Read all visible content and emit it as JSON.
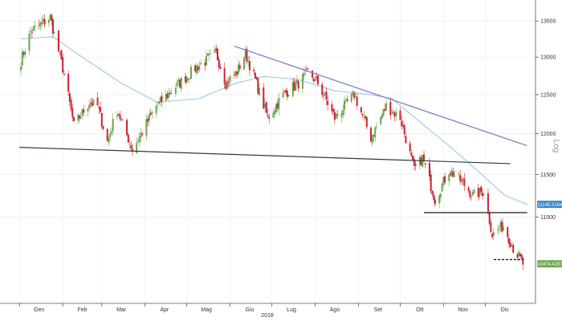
{
  "chart_data": {
    "type": "candlestick",
    "title": "",
    "xlabel": "2018",
    "ylabel": "Log",
    "y_scale": "log",
    "ylim": [
      10050,
      13800
    ],
    "y_ticks": [
      "13500",
      "13000",
      "12500",
      "12000",
      "11500",
      "11000"
    ],
    "months": [
      "Gen",
      "Feb",
      "Mar",
      "Apr",
      "Mag",
      "Giu",
      "Lug",
      "Ago",
      "Set",
      "Ott",
      "Nov",
      "Dic"
    ],
    "up_color": "#6aa84f",
    "down_color": "#cc2233",
    "moving_average_color": "#8fc3ea",
    "price_badges": [
      {
        "name": "moving-average",
        "value": "11145.5164",
        "color": "#3d85c6"
      },
      {
        "name": "last-price",
        "value": "10474.4297",
        "color": "#6aa84f"
      }
    ],
    "close_path": [
      {
        "date": "2018-01-02",
        "close": 12950
      },
      {
        "date": "2018-01-09",
        "close": 13350
      },
      {
        "date": "2018-01-23",
        "close": 13550
      },
      {
        "date": "2018-02-01",
        "close": 12850
      },
      {
        "date": "2018-02-09",
        "close": 12100
      },
      {
        "date": "2018-02-20",
        "close": 12400
      },
      {
        "date": "2018-02-26",
        "close": 12350
      },
      {
        "date": "2018-03-05",
        "close": 11900
      },
      {
        "date": "2018-03-12",
        "close": 12300
      },
      {
        "date": "2018-03-23",
        "close": 11800
      },
      {
        "date": "2018-04-09",
        "close": 12350
      },
      {
        "date": "2018-04-20",
        "close": 12550
      },
      {
        "date": "2018-05-07",
        "close": 12850
      },
      {
        "date": "2018-05-22",
        "close": 13050
      },
      {
        "date": "2018-05-29",
        "close": 12650
      },
      {
        "date": "2018-06-06",
        "close": 12800
      },
      {
        "date": "2018-06-12",
        "close": 13050
      },
      {
        "date": "2018-06-18",
        "close": 12750
      },
      {
        "date": "2018-06-28",
        "close": 12200
      },
      {
        "date": "2018-07-09",
        "close": 12500
      },
      {
        "date": "2018-07-20",
        "close": 12650
      },
      {
        "date": "2018-07-27",
        "close": 12800
      },
      {
        "date": "2018-08-03",
        "close": 12650
      },
      {
        "date": "2018-08-15",
        "close": 12200
      },
      {
        "date": "2018-08-29",
        "close": 12500
      },
      {
        "date": "2018-09-10",
        "close": 11950
      },
      {
        "date": "2018-09-21",
        "close": 12350
      },
      {
        "date": "2018-10-01",
        "close": 12200
      },
      {
        "date": "2018-10-11",
        "close": 11550
      },
      {
        "date": "2018-10-17",
        "close": 11700
      },
      {
        "date": "2018-10-26",
        "close": 11200
      },
      {
        "date": "2018-11-05",
        "close": 11550
      },
      {
        "date": "2018-11-15",
        "close": 11400
      },
      {
        "date": "2018-11-22",
        "close": 11250
      },
      {
        "date": "2018-11-30",
        "close": 11300
      },
      {
        "date": "2018-12-06",
        "close": 10800
      },
      {
        "date": "2018-12-14",
        "close": 10900
      },
      {
        "date": "2018-12-21",
        "close": 10650
      },
      {
        "date": "2018-12-28",
        "close": 10474
      }
    ],
    "moving_average": [
      {
        "date": "2018-01-02",
        "value": 13250
      },
      {
        "date": "2018-01-25",
        "value": 13280
      },
      {
        "date": "2018-02-15",
        "value": 13000
      },
      {
        "date": "2018-03-15",
        "value": 12650
      },
      {
        "date": "2018-04-10",
        "value": 12400
      },
      {
        "date": "2018-05-10",
        "value": 12450
      },
      {
        "date": "2018-06-05",
        "value": 12650
      },
      {
        "date": "2018-06-25",
        "value": 12740
      },
      {
        "date": "2018-07-20",
        "value": 12700
      },
      {
        "date": "2018-08-15",
        "value": 12550
      },
      {
        "date": "2018-09-10",
        "value": 12500
      },
      {
        "date": "2018-09-25",
        "value": 12450
      },
      {
        "date": "2018-10-15",
        "value": 12150
      },
      {
        "date": "2018-11-05",
        "value": 11850
      },
      {
        "date": "2018-11-25",
        "value": 11550
      },
      {
        "date": "2018-12-15",
        "value": 11250
      },
      {
        "date": "2018-12-31",
        "value": 11145.5164
      }
    ],
    "trendlines": [
      {
        "name": "upper-resistance",
        "color": "#7777cc",
        "from": {
          "date": "2018-06-04",
          "value": 13150
        },
        "to": {
          "date": "2018-12-31",
          "value": 11850
        }
      },
      {
        "name": "long-support",
        "color": "#2b3a4a",
        "from": {
          "date": "2018-01-01",
          "value": 11830
        },
        "to": {
          "date": "2018-12-19",
          "value": 11630
        }
      },
      {
        "name": "october-support",
        "color": "#000000",
        "from": {
          "date": "2018-10-18",
          "value": 11050
        },
        "to": {
          "date": "2018-12-31",
          "value": 11050
        }
      },
      {
        "name": "december-support",
        "color": "#000000",
        "dashed": true,
        "from": {
          "date": "2018-12-07",
          "value": 10520
        },
        "to": {
          "date": "2018-12-28",
          "value": 10520
        }
      }
    ]
  }
}
